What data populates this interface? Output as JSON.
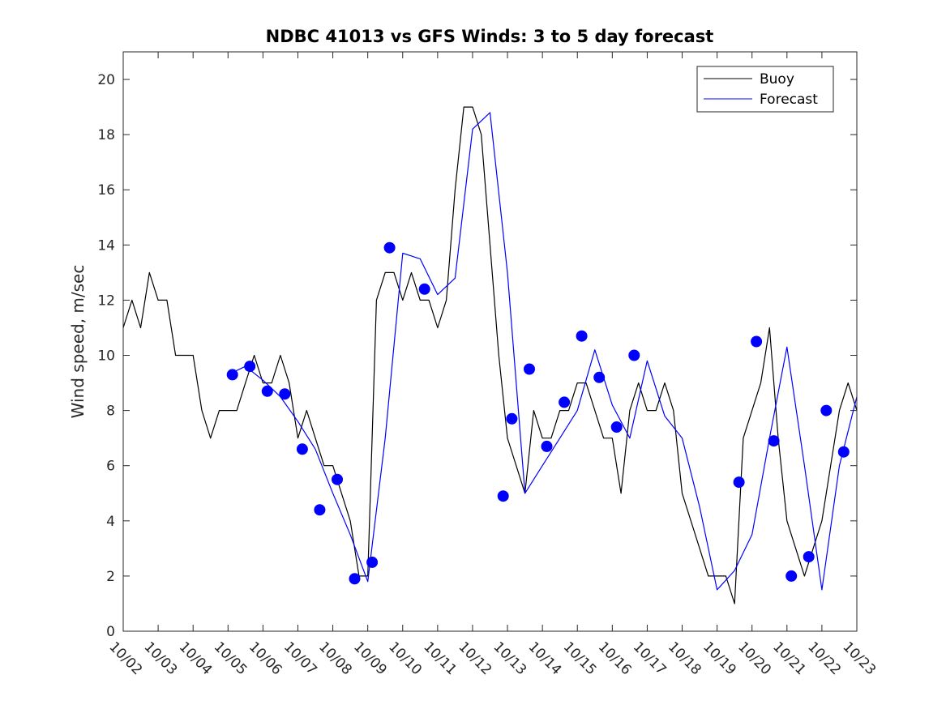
{
  "chart_data": {
    "type": "line",
    "title": "NDBC 41013 vs GFS Winds: 3 to 5 day forecast",
    "xlabel": "",
    "ylabel": "Wind speed, m/sec",
    "ylim": [
      0,
      21
    ],
    "xlim": [
      "10/02 00:00",
      "10/23 00:00"
    ],
    "xtick_labels": [
      "10/02",
      "10/03",
      "10/04",
      "10/05",
      "10/06",
      "10/07",
      "10/08",
      "10/09",
      "10/10",
      "10/11",
      "10/12",
      "10/13",
      "10/14",
      "10/15",
      "10/16",
      "10/17",
      "10/18",
      "10/19",
      "10/20",
      "10/21",
      "10/22",
      "10/23"
    ],
    "yticks": [
      0,
      2,
      4,
      6,
      8,
      10,
      12,
      14,
      16,
      18,
      20
    ],
    "grid": false,
    "legend": {
      "placement": "top-right",
      "entries": [
        "Buoy",
        "Forecast"
      ]
    },
    "colors": {
      "buoy": "#000000",
      "forecast": "#0000ff",
      "marker": "#0000ff"
    },
    "series": [
      {
        "name": "Buoy",
        "x": [
          "10/02 00:00",
          "10/02 06:00",
          "10/02 12:00",
          "10/02 18:00",
          "10/03 00:00",
          "10/03 06:00",
          "10/03 12:00",
          "10/03 18:00",
          "10/04 00:00",
          "10/04 06:00",
          "10/04 12:00",
          "10/04 18:00",
          "10/05 00:00",
          "10/05 06:00",
          "10/05 12:00",
          "10/05 18:00",
          "10/06 00:00",
          "10/06 06:00",
          "10/06 12:00",
          "10/06 18:00",
          "10/07 00:00",
          "10/07 06:00",
          "10/07 12:00",
          "10/07 18:00",
          "10/08 00:00",
          "10/08 06:00",
          "10/08 12:00",
          "10/08 18:00",
          "10/09 00:00",
          "10/09 06:00",
          "10/09 12:00",
          "10/09 18:00",
          "10/10 00:00",
          "10/10 06:00",
          "10/10 12:00",
          "10/10 18:00",
          "10/11 00:00",
          "10/11 06:00",
          "10/11 12:00",
          "10/11 18:00",
          "10/12 00:00",
          "10/12 06:00",
          "10/12 12:00",
          "10/12 18:00",
          "10/13 00:00",
          "10/13 06:00",
          "10/13 12:00",
          "10/13 18:00",
          "10/14 00:00",
          "10/14 06:00",
          "10/14 12:00",
          "10/14 18:00",
          "10/15 00:00",
          "10/15 06:00",
          "10/15 12:00",
          "10/15 18:00",
          "10/16 00:00",
          "10/16 06:00",
          "10/16 12:00",
          "10/16 18:00",
          "10/17 00:00",
          "10/17 06:00",
          "10/17 12:00",
          "10/17 18:00",
          "10/18 00:00",
          "10/18 06:00",
          "10/18 12:00",
          "10/18 18:00",
          "10/19 00:00",
          "10/19 06:00",
          "10/19 12:00",
          "10/19 18:00",
          "10/20 00:00",
          "10/20 06:00",
          "10/20 12:00",
          "10/20 18:00",
          "10/21 00:00",
          "10/21 06:00",
          "10/21 12:00",
          "10/21 18:00",
          "10/22 00:00",
          "10/22 06:00",
          "10/22 12:00",
          "10/22 18:00",
          "10/23 00:00"
        ],
        "values": [
          11,
          12,
          11,
          13,
          12,
          12,
          10,
          10,
          10,
          8,
          7,
          8,
          8,
          8,
          9,
          10,
          9,
          9,
          10,
          9,
          7,
          8,
          7,
          6,
          6,
          5,
          4,
          2,
          2,
          12,
          13,
          13,
          12,
          13,
          12,
          12,
          11,
          12,
          16,
          19,
          19,
          18,
          14,
          10,
          7,
          6,
          5,
          8,
          7,
          7,
          8,
          8,
          9,
          9,
          8,
          7,
          7,
          5,
          8,
          9,
          8,
          8,
          9,
          8,
          5,
          4,
          3,
          2,
          2,
          2,
          1,
          7,
          8,
          9,
          11,
          7,
          4,
          3,
          2,
          3,
          4,
          6,
          8,
          9,
          8
        ]
      },
      {
        "name": "Forecast",
        "x": [
          "10/05 00:00",
          "10/05 12:00",
          "10/06 00:00",
          "10/06 12:00",
          "10/07 00:00",
          "10/07 12:00",
          "10/08 00:00",
          "10/08 12:00",
          "10/09 00:00",
          "10/09 12:00",
          "10/10 00:00",
          "10/10 12:00",
          "10/11 00:00",
          "10/11 12:00",
          "10/12 00:00",
          "10/12 12:00",
          "10/13 00:00",
          "10/13 12:00",
          "10/14 00:00",
          "10/14 12:00",
          "10/15 00:00",
          "10/15 12:00",
          "10/16 00:00",
          "10/16 12:00",
          "10/17 00:00",
          "10/17 12:00",
          "10/18 00:00",
          "10/18 12:00",
          "10/19 00:00",
          "10/19 12:00",
          "10/20 00:00",
          "10/20 12:00",
          "10/21 00:00",
          "10/21 12:00",
          "10/22 00:00",
          "10/22 12:00",
          "10/23 00:00"
        ],
        "values": [
          9.3,
          9.6,
          9.1,
          8.5,
          7.6,
          6.6,
          5.0,
          3.5,
          1.8,
          7.0,
          13.7,
          13.5,
          12.2,
          12.8,
          18.2,
          18.8,
          13.0,
          5.0,
          6.0,
          7.0,
          8.0,
          10.2,
          8.2,
          7.0,
          9.8,
          7.8,
          7.0,
          4.5,
          1.5,
          2.2,
          3.5,
          7.0,
          10.3,
          6.0,
          1.5,
          6.0,
          8.5
        ]
      }
    ],
    "markers": {
      "x": [
        "10/05 03:00",
        "10/05 15:00",
        "10/06 03:00",
        "10/06 15:00",
        "10/07 03:00",
        "10/07 15:00",
        "10/08 03:00",
        "10/08 15:00",
        "10/09 03:00",
        "10/09 15:00",
        "10/10 15:00",
        "10/12 21:00",
        "10/13 03:00",
        "10/13 15:00",
        "10/14 03:00",
        "10/14 15:00",
        "10/15 03:00",
        "10/15 15:00",
        "10/16 03:00",
        "10/16 15:00",
        "10/19 15:00",
        "10/20 03:00",
        "10/20 15:00",
        "10/21 03:00",
        "10/21 15:00",
        "10/22 03:00",
        "10/22 15:00"
      ],
      "values": [
        9.3,
        9.6,
        8.7,
        8.6,
        6.6,
        4.4,
        5.5,
        1.9,
        2.5,
        13.9,
        12.4,
        4.9,
        7.7,
        9.5,
        6.7,
        8.3,
        10.7,
        9.2,
        7.4,
        10.0,
        5.4,
        10.5,
        6.9,
        2.0,
        2.7,
        8.0,
        6.5
      ]
    }
  }
}
